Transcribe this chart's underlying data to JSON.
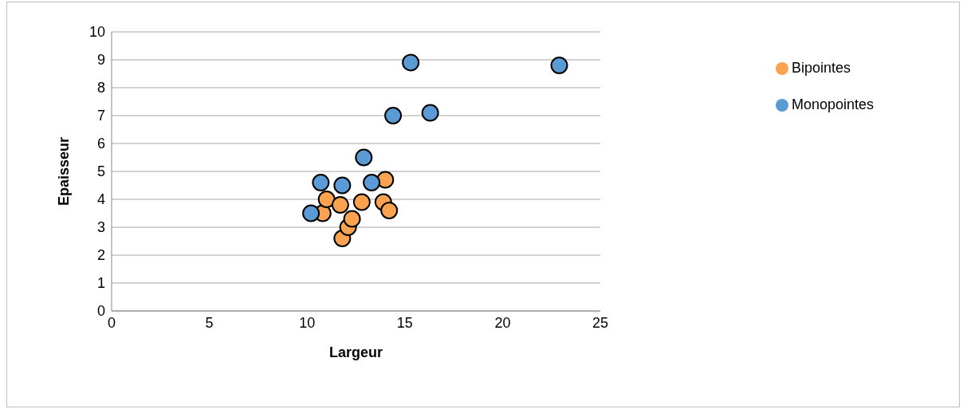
{
  "chart_data": {
    "type": "scatter",
    "xlabel": "Largeur",
    "ylabel": "Epaisseur",
    "xlim": [
      0,
      25
    ],
    "xticks": [
      0,
      5,
      10,
      15,
      20,
      25
    ],
    "ylim": [
      0,
      10
    ],
    "yticks": [
      0,
      1,
      2,
      3,
      4,
      5,
      6,
      7,
      8,
      9,
      10
    ],
    "grid": "y",
    "legend": "right",
    "marker": "circle",
    "series": [
      {
        "name": "Bipointes",
        "color": "#f9a350",
        "x": [
          10.8,
          11.0,
          11.7,
          11.8,
          12.1,
          12.3,
          12.8,
          13.9,
          14.0,
          14.2
        ],
        "values": [
          3.5,
          4.0,
          3.8,
          2.6,
          3.0,
          3.3,
          3.9,
          3.9,
          4.7,
          3.6
        ]
      },
      {
        "name": "Monopointes",
        "color": "#5b9bd5",
        "x": [
          10.2,
          10.7,
          11.8,
          12.9,
          13.3,
          14.4,
          15.3,
          16.3,
          22.9
        ],
        "values": [
          3.5,
          4.6,
          4.5,
          5.5,
          4.6,
          7.0,
          8.9,
          7.1,
          8.8
        ]
      }
    ]
  }
}
